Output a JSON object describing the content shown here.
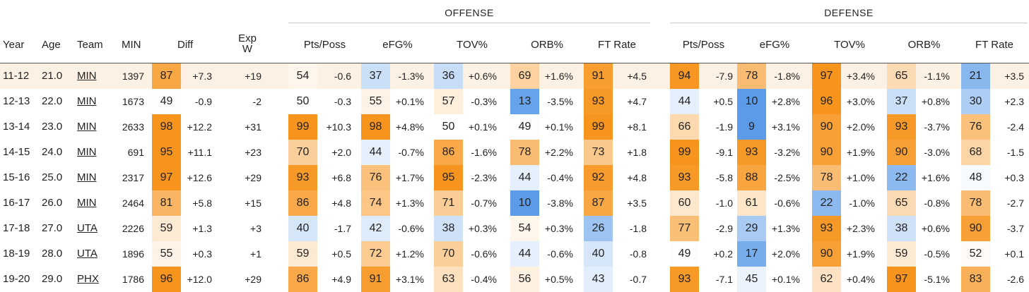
{
  "groups": {
    "offense": "OFFENSE",
    "defense": "DEFENSE"
  },
  "columns": {
    "year": "Year",
    "age": "Age",
    "team": "Team",
    "min": "MIN",
    "diff": "Diff",
    "expw_line1": "Exp",
    "expw_line2": "W",
    "off": [
      "Pts/Poss",
      "eFG%",
      "TOV%",
      "ORB%",
      "FT Rate"
    ],
    "def": [
      "Pts/Poss",
      "eFG%",
      "TOV%",
      "ORB%",
      "FT Rate"
    ]
  },
  "colors": {
    "orange_strong": "#f7941d",
    "blue_strong": "#5b9be8",
    "neutral": "#ffffff",
    "row_highlight": "#fdf1e4"
  },
  "chart_data": {
    "type": "table",
    "rows": [
      {
        "year": "11-12",
        "age": "21.0",
        "team": "MIN",
        "min": "1397",
        "diff_pct": "87",
        "diff": "+7.3",
        "expw": "+19",
        "off": [
          [
            "54",
            "-0.6"
          ],
          [
            "37",
            "-1.3%"
          ],
          [
            "36",
            "+0.6%"
          ],
          [
            "69",
            "+1.6%"
          ],
          [
            "91",
            "+4.5"
          ]
        ],
        "def": [
          [
            "94",
            "-7.9"
          ],
          [
            "78",
            "-1.8%"
          ],
          [
            "97",
            "+3.4%"
          ],
          [
            "65",
            "-1.1%"
          ],
          [
            "21",
            "+3.5"
          ]
        ]
      },
      {
        "year": "12-13",
        "age": "22.0",
        "team": "MIN",
        "min": "1673",
        "diff_pct": "49",
        "diff": "-0.9",
        "expw": "-2",
        "off": [
          [
            "50",
            "-0.3"
          ],
          [
            "55",
            "+0.1%"
          ],
          [
            "57",
            "-0.3%"
          ],
          [
            "13",
            "-3.5%"
          ],
          [
            "93",
            "+4.7"
          ]
        ],
        "def": [
          [
            "44",
            "+0.5"
          ],
          [
            "10",
            "+2.8%"
          ],
          [
            "96",
            "+3.0%"
          ],
          [
            "37",
            "+0.8%"
          ],
          [
            "30",
            "+2.3"
          ]
        ]
      },
      {
        "year": "13-14",
        "age": "23.0",
        "team": "MIN",
        "min": "2633",
        "diff_pct": "98",
        "diff": "+12.2",
        "expw": "+31",
        "off": [
          [
            "99",
            "+10.3"
          ],
          [
            "98",
            "+4.8%"
          ],
          [
            "50",
            "+0.1%"
          ],
          [
            "49",
            "+0.1%"
          ],
          [
            "99",
            "+8.1"
          ]
        ],
        "def": [
          [
            "66",
            "-1.9"
          ],
          [
            "9",
            "+3.1%"
          ],
          [
            "90",
            "+2.0%"
          ],
          [
            "93",
            "-3.7%"
          ],
          [
            "76",
            "-2.4"
          ]
        ]
      },
      {
        "year": "14-15",
        "age": "24.0",
        "team": "MIN",
        "min": "691",
        "diff_pct": "95",
        "diff": "+11.1",
        "expw": "+23",
        "off": [
          [
            "70",
            "+2.0"
          ],
          [
            "44",
            "-0.7%"
          ],
          [
            "86",
            "-1.6%"
          ],
          [
            "78",
            "+2.2%"
          ],
          [
            "73",
            "+1.8"
          ]
        ],
        "def": [
          [
            "99",
            "-9.1"
          ],
          [
            "93",
            "-3.2%"
          ],
          [
            "90",
            "+1.9%"
          ],
          [
            "90",
            "-3.0%"
          ],
          [
            "68",
            "-1.5"
          ]
        ]
      },
      {
        "year": "15-16",
        "age": "25.0",
        "team": "MIN",
        "min": "2317",
        "diff_pct": "97",
        "diff": "+12.6",
        "expw": "+29",
        "off": [
          [
            "93",
            "+6.8"
          ],
          [
            "76",
            "+1.7%"
          ],
          [
            "95",
            "-2.3%"
          ],
          [
            "44",
            "-0.4%"
          ],
          [
            "92",
            "+4.8"
          ]
        ],
        "def": [
          [
            "93",
            "-5.8"
          ],
          [
            "88",
            "-2.5%"
          ],
          [
            "78",
            "+1.0%"
          ],
          [
            "22",
            "+1.6%"
          ],
          [
            "48",
            "+0.3"
          ]
        ]
      },
      {
        "year": "16-17",
        "age": "26.0",
        "team": "MIN",
        "min": "2464",
        "diff_pct": "81",
        "diff": "+5.8",
        "expw": "+15",
        "off": [
          [
            "86",
            "+4.8"
          ],
          [
            "74",
            "+1.3%"
          ],
          [
            "71",
            "-0.7%"
          ],
          [
            "10",
            "-3.8%"
          ],
          [
            "87",
            "+3.5"
          ]
        ],
        "def": [
          [
            "60",
            "-1.0"
          ],
          [
            "61",
            "-0.6%"
          ],
          [
            "22",
            "-1.0%"
          ],
          [
            "65",
            "-0.8%"
          ],
          [
            "78",
            "-2.7"
          ]
        ]
      },
      {
        "year": "17-18",
        "age": "27.0",
        "team": "UTA",
        "min": "2226",
        "diff_pct": "59",
        "diff": "+1.3",
        "expw": "+3",
        "off": [
          [
            "40",
            "-1.7"
          ],
          [
            "42",
            "-0.6%"
          ],
          [
            "38",
            "+0.3%"
          ],
          [
            "54",
            "+0.3%"
          ],
          [
            "26",
            "-1.8"
          ]
        ],
        "def": [
          [
            "77",
            "-2.9"
          ],
          [
            "29",
            "+1.3%"
          ],
          [
            "93",
            "+2.3%"
          ],
          [
            "38",
            "+0.6%"
          ],
          [
            "90",
            "-3.7"
          ]
        ]
      },
      {
        "year": "18-19",
        "age": "28.0",
        "team": "UTA",
        "min": "1896",
        "diff_pct": "55",
        "diff": "+0.3",
        "expw": "+1",
        "off": [
          [
            "59",
            "+0.5"
          ],
          [
            "72",
            "+1.2%"
          ],
          [
            "70",
            "-0.6%"
          ],
          [
            "44",
            "-0.6%"
          ],
          [
            "40",
            "-0.8"
          ]
        ],
        "def": [
          [
            "49",
            "+0.2"
          ],
          [
            "17",
            "+2.0%"
          ],
          [
            "90",
            "+1.9%"
          ],
          [
            "59",
            "-0.5%"
          ],
          [
            "52",
            "+0.1"
          ]
        ]
      },
      {
        "year": "19-20",
        "age": "29.0",
        "team": "PHX",
        "min": "1786",
        "diff_pct": "96",
        "diff": "+12.0",
        "expw": "+29",
        "off": [
          [
            "86",
            "+4.9"
          ],
          [
            "91",
            "+3.1%"
          ],
          [
            "63",
            "-0.4%"
          ],
          [
            "56",
            "+0.5%"
          ],
          [
            "43",
            "-0.7"
          ]
        ],
        "def": [
          [
            "93",
            "-7.1"
          ],
          [
            "45",
            "+0.1%"
          ],
          [
            "62",
            "+0.4%"
          ],
          [
            "97",
            "-5.1%"
          ],
          [
            "83",
            "-2.6"
          ]
        ]
      }
    ]
  }
}
